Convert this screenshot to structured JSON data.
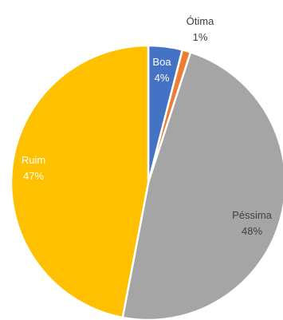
{
  "chart_data": {
    "type": "pie",
    "title": "",
    "slices": [
      {
        "name": "Boa",
        "value": 4,
        "label": "4%",
        "color": "#4472C4",
        "label_color": "#ffffff"
      },
      {
        "name": "Ótima",
        "value": 1,
        "label": "1%",
        "color": "#ED7D31",
        "label_color": "#404040"
      },
      {
        "name": "Péssima",
        "value": 48,
        "label": "48%",
        "color": "#A5A5A5",
        "label_color": "#404040"
      },
      {
        "name": "Ruim",
        "value": 47,
        "label": "47%",
        "color": "#FFC000",
        "label_color": "#ffffff"
      }
    ],
    "start_angle": "12 o'clock",
    "direction": "clockwise",
    "legend": "none"
  }
}
